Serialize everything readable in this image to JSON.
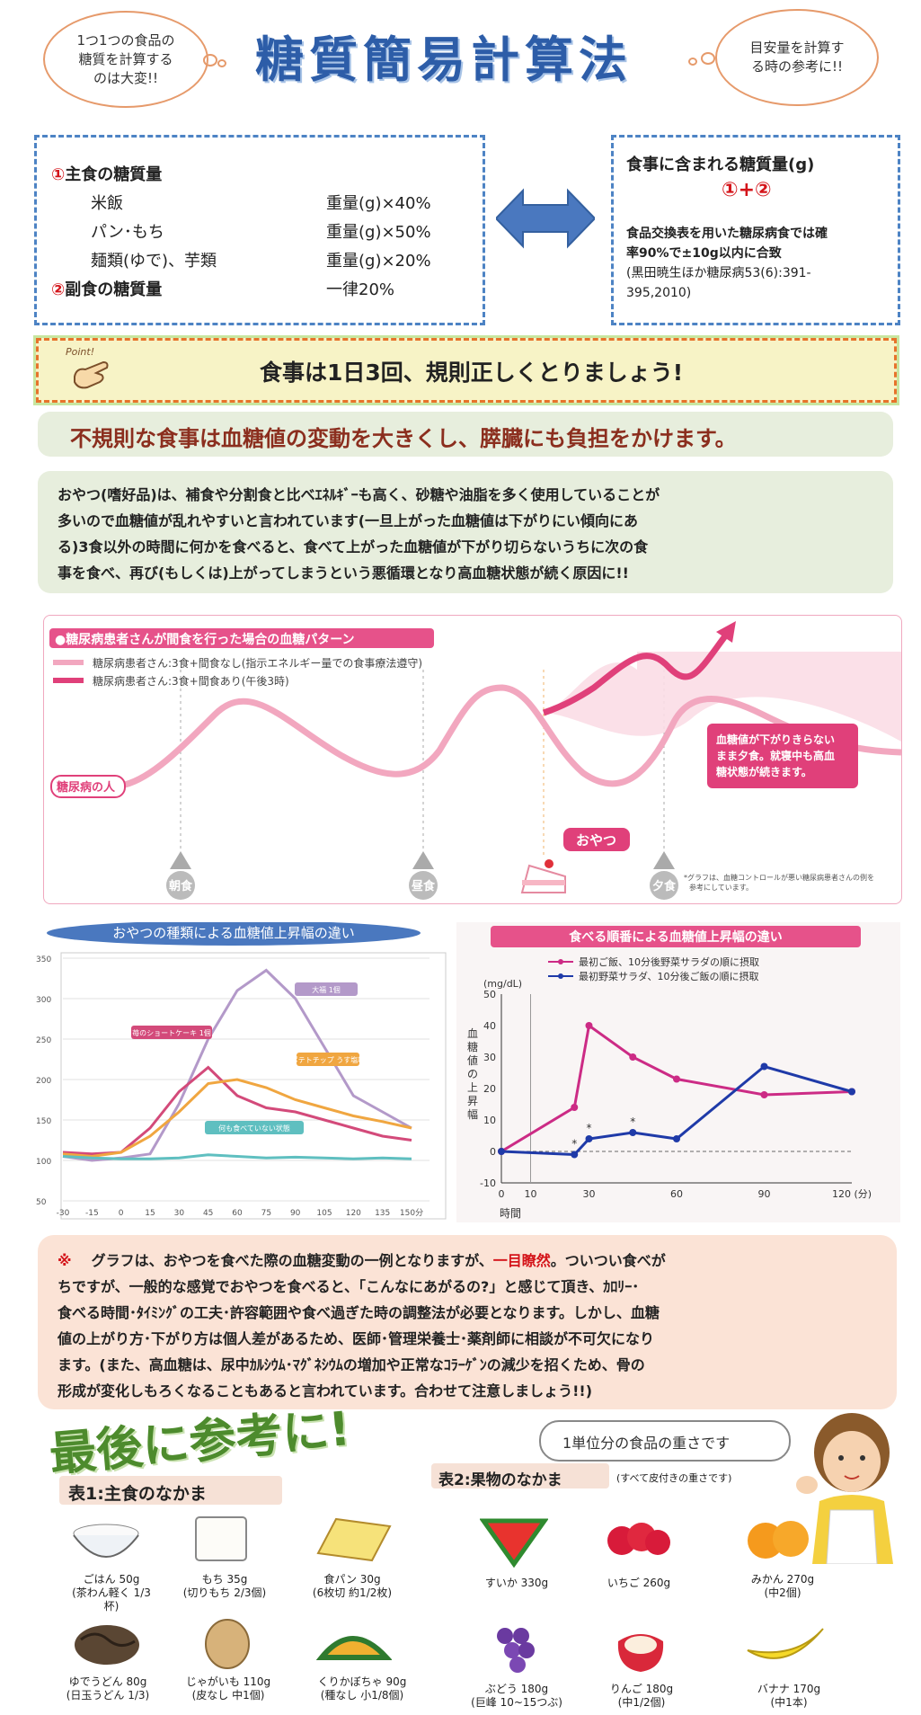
{
  "header": {
    "title": "糖質簡易計算法",
    "cloud_left": [
      "1つ1つの食品の",
      "糖質を計算する",
      "のは大変!!"
    ],
    "cloud_right": [
      "目安量を計算す",
      "る時の参考に!!"
    ]
  },
  "calc_box": {
    "rows": [
      {
        "mark": "①",
        "label": "主食の糖質量",
        "value": ""
      },
      {
        "mark": "",
        "label": "米飯",
        "value": "重量(g)×40%"
      },
      {
        "mark": "",
        "label": "パン･もち",
        "value": "重量(g)×50%"
      },
      {
        "mark": "",
        "label": "麺類(ゆで)、芋類",
        "value": "重量(g)×20%"
      },
      {
        "mark": "②",
        "label": "副食の糖質量",
        "value": "一律20%"
      }
    ]
  },
  "result_box": {
    "heading": "食事に含まれる糖質量(g)",
    "formula": "①+②",
    "note": [
      "食品交換表を用いた糖尿病食では確",
      "率90%で±10g以内に合致",
      "(黒田暁生ほか糖尿病53(6):391-",
      "395,2010)"
    ]
  },
  "point_banner": {
    "badge": "Point!",
    "text": "食事は1日3回、規則正しくとりましょう!"
  },
  "warning": "不規則な食事は血糖値の変動を大きくし、膵臓にも負担をかけます。",
  "snack_paragraph": [
    "おやつ(嗜好品)は、補食や分割食と比べｴﾈﾙｷﾞｰも高く、砂糖や油脂を多く使用していることが",
    "多いので血糖値が乱れやすいと言われています(一旦上がった血糖値は下がりにい傾向にあ",
    "る)3食以外の時間に何かを食べると、食べて上がった血糖値が下がり切らないうちに次の食",
    "事を食べ、再び(もしくは)上がってしまうという悪循環となり高血糖状態が続く原因に!!"
  ],
  "pattern_chart": {
    "title": "●糖尿病患者さんが間食を行った場合の血糖パターン",
    "legend": [
      "糖尿病患者さん:3食+間食なし(指示エネルギー量での食事療法遵守)",
      "糖尿病患者さん:3食+間食あり(午後3時)"
    ],
    "person_label": "糖尿病の人",
    "callout": [
      "血糖値が下がりきらない",
      "まま夕食。就寝中も高血",
      "糖状態が続きます。"
    ],
    "snack_label": "おやつ",
    "meals": [
      "朝食",
      "昼食",
      "夕食"
    ],
    "footnote": [
      "*グラフは、血糖コントロールが悪い糖尿病患者さんの例を",
      "参考にしています。"
    ],
    "colors": {
      "base": "#f2a7bf",
      "snack": "#e0407a"
    }
  },
  "chart_data": [
    {
      "type": "line",
      "title": "おやつの種類による血糖値上昇幅の違い",
      "x": [
        -30,
        -15,
        0,
        15,
        30,
        45,
        60,
        75,
        90,
        105,
        120,
        135,
        150
      ],
      "x_tick_labels": [
        "-30",
        "-15",
        "0",
        "15",
        "30",
        "45",
        "60",
        "75",
        "90",
        "105",
        "120",
        "135",
        "150分"
      ],
      "ylim": [
        50,
        350
      ],
      "yticks": [
        50,
        100,
        150,
        200,
        250,
        300,
        350
      ],
      "series": [
        {
          "name": "大福 1個",
          "color": "#b399c9",
          "values": [
            105,
            100,
            103,
            108,
            170,
            250,
            310,
            335,
            300,
            240,
            180,
            160,
            140
          ]
        },
        {
          "name": "苺のショートケーキ 1個",
          "color": "#d34a7a",
          "values": [
            110,
            108,
            110,
            140,
            185,
            215,
            180,
            165,
            160,
            150,
            140,
            130,
            125
          ]
        },
        {
          "name": "ポテトチップ うす塩味",
          "color": "#f0a640",
          "values": [
            108,
            105,
            110,
            130,
            160,
            195,
            200,
            190,
            175,
            165,
            155,
            148,
            140
          ]
        },
        {
          "name": "何も食べていない状態",
          "color": "#5fbfc0",
          "values": [
            105,
            103,
            102,
            102,
            103,
            107,
            105,
            103,
            104,
            103,
            102,
            103,
            102
          ]
        }
      ]
    },
    {
      "type": "line",
      "title": "食べる順番による血糖値上昇幅の違い",
      "ylabel": "血糖値の上昇幅",
      "yunit": "(mg/dL)",
      "xlabel": "時間",
      "x_tick_labels": [
        "0",
        "10",
        "30",
        "60",
        "90",
        "120 (分)"
      ],
      "x_ticks": [
        0,
        10,
        30,
        60,
        90,
        120
      ],
      "ylim": [
        -10,
        50
      ],
      "yticks": [
        -10,
        0,
        10,
        20,
        30,
        40,
        50
      ],
      "series": [
        {
          "name": "最初ご飯、10分後野菜サラダの順に摂取",
          "color": "#cc2b85",
          "x": [
            0,
            25,
            30,
            45,
            60,
            90,
            120
          ],
          "values": [
            0,
            14,
            40,
            30,
            23,
            18,
            19
          ]
        },
        {
          "name": "最初野菜サラダ、10分後ご飯の順に摂取",
          "color": "#1f3aa8",
          "x": [
            0,
            25,
            30,
            45,
            60,
            90,
            120
          ],
          "values": [
            0,
            -1,
            4,
            6,
            4,
            27,
            19
          ]
        }
      ],
      "annotations": [
        "*",
        "*",
        "*"
      ]
    }
  ],
  "note_paragraph": {
    "mark": "※",
    "line1_a": "グラフは、おやつを食べた際の血糖変動の一例となりますが、",
    "line1_red": "一目瞭然",
    "line1_b": "。ついつい食べが",
    "lines": [
      "ちですが、一般的な感覚でおやつを食べると、「こんなにあがるの?」と感じて頂き、ｶﾛﾘｰ･",
      "食べる時間･ﾀｲﾐﾝｸﾞの工夫･許容範囲や食べ過ぎた時の調整法が必要となります。しかし、血糖",
      "値の上がり方･下がり方は個人差があるため、医師･管理栄養士･薬剤師に相談が不可欠になり",
      "ます。(また、高血糖は、尿中ｶﾙｼｳﾑ･ﾏｸﾞﾈｼｳﾑの増加や正常なｺﾗｰｹﾞﾝの減少を招くため、骨の",
      "形成が変化しもろくなることもあると言われています。合わせて注意しましょう!!)"
    ]
  },
  "reference": {
    "heading": "最後に参考に!",
    "bubble": "1単位分の食品の重さです",
    "table1": {
      "title": "表1:主食のなかま",
      "items": [
        {
          "name": "ごはん 50g",
          "sub": "(茶わん軽く 1/3杯)"
        },
        {
          "name": "もち 35g",
          "sub": "(切りもち 2/3個)"
        },
        {
          "name": "食パン 30g",
          "sub": "(6枚切 約1/2枚)"
        },
        {
          "name": "ゆでうどん 80g",
          "sub": "(日玉うどん 1/3)"
        },
        {
          "name": "じゃがいも 110g",
          "sub": "(皮なし 中1個)"
        },
        {
          "name": "くりかぼちゃ 90g",
          "sub": "(種なし 小1/8個)"
        }
      ]
    },
    "table2": {
      "title": "表2:果物のなかま",
      "subtitle": "(すべて皮付きの重さです)",
      "items": [
        {
          "name": "すいか 330g",
          "sub": ""
        },
        {
          "name": "いちご 260g",
          "sub": ""
        },
        {
          "name": "みかん 270g",
          "sub": "(中2個)"
        },
        {
          "name": "ぶどう 180g",
          "sub": "(巨峰 10~15つぶ)"
        },
        {
          "name": "りんご 180g",
          "sub": "(中1/2個)"
        },
        {
          "name": "バナナ 170g",
          "sub": "(中1本)"
        }
      ]
    }
  }
}
